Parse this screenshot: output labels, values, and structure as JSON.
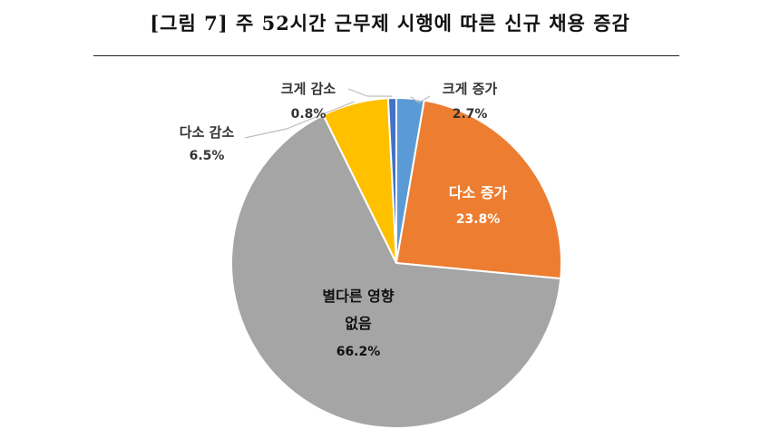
{
  "figure": {
    "title": "[그림 7] 주 52시간 근무제 시행에 따른 신규 채용 증감"
  },
  "chart_data": {
    "type": "pie",
    "slices": [
      {
        "label": "크게 증가",
        "value": 2.7,
        "display": "2.7%",
        "color": "#5B9BD5",
        "label_position": "outside"
      },
      {
        "label": "다소 증가",
        "value": 23.8,
        "display": "23.8%",
        "color": "#ED7D31",
        "label_position": "inside"
      },
      {
        "label": "별다른 영향 없음",
        "value": 66.2,
        "display": "66.2%",
        "color": "#A5A5A5",
        "label_position": "inside"
      },
      {
        "label": "다소 감소",
        "value": 6.5,
        "display": "6.5%",
        "color": "#FFC000",
        "label_position": "outside"
      },
      {
        "label": "크게 감소",
        "value": 0.8,
        "display": "0.8%",
        "color": "#4472C4",
        "label_position": "outside"
      }
    ],
    "start": "12 o'clock",
    "direction": "clockwise",
    "legend": "none"
  }
}
